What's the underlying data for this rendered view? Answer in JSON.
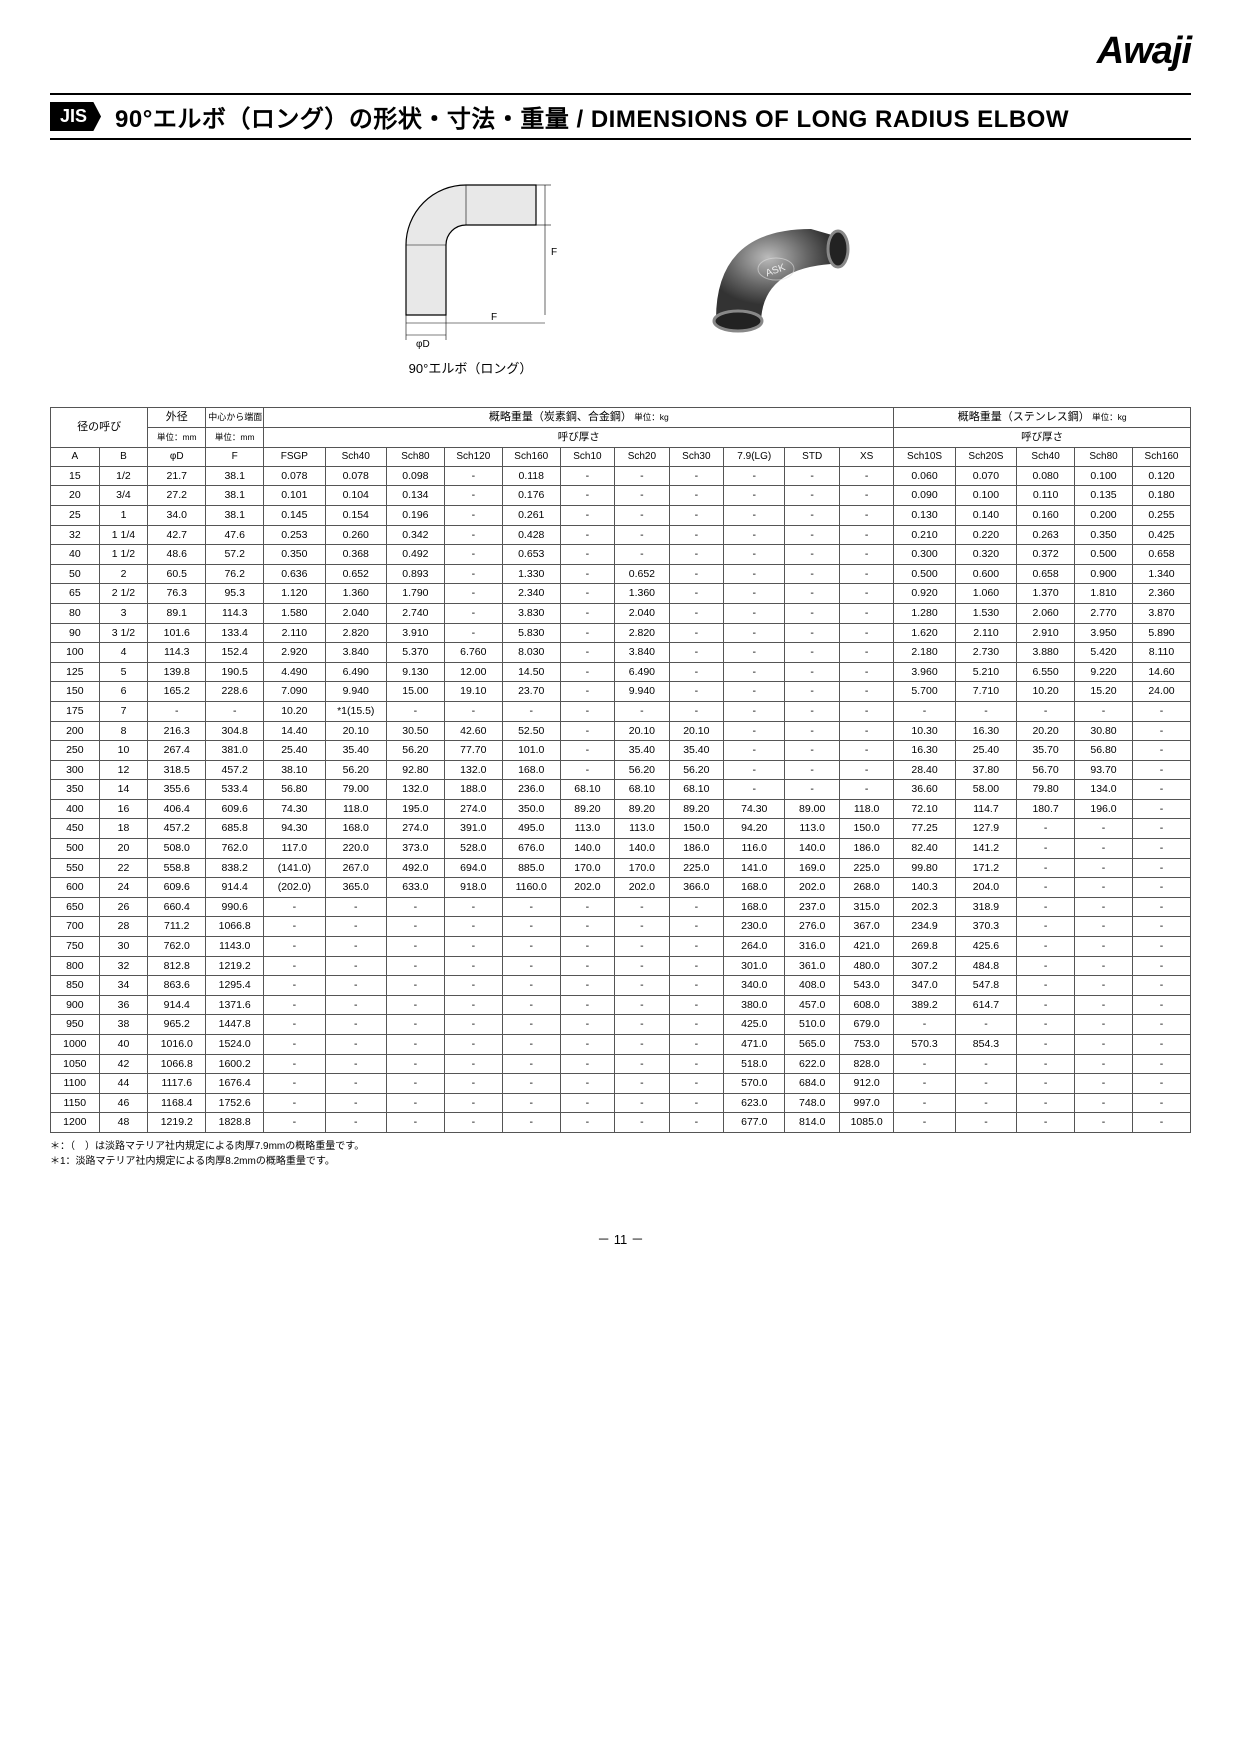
{
  "logo": "Awaji",
  "jis_tag": "JIS",
  "title": "90°エルボ（ロング）の形状・寸法・重量  /  DIMENSIONS OF LONG RADIUS ELBOW",
  "figure_caption": "90°エルボ（ロング）",
  "table": {
    "header": {
      "nominal": "径の呼び",
      "od": "外径",
      "od_unit": "単位：mm",
      "distance": "中心から端面までの距離",
      "distance_unit": "単位：mm",
      "carbon_title": "概略重量（炭素鋼、合金鋼）",
      "carbon_unit": " 単位：kg",
      "stainless_title": "概略重量（ステンレス鋼）",
      "stainless_unit": " 単位：kg",
      "thickness": "呼び厚さ",
      "cols": [
        "A",
        "B",
        "φD",
        "F",
        "FSGP",
        "Sch40",
        "Sch80",
        "Sch120",
        "Sch160",
        "Sch10",
        "Sch20",
        "Sch30",
        "7.9(LG)",
        "STD",
        "XS",
        "Sch10S",
        "Sch20S",
        "Sch40",
        "Sch80",
        "Sch160"
      ]
    },
    "rows": [
      [
        "15",
        "1/2",
        "21.7",
        "38.1",
        "0.078",
        "0.078",
        "0.098",
        "-",
        "0.118",
        "-",
        "-",
        "-",
        "-",
        "-",
        "-",
        "0.060",
        "0.070",
        "0.080",
        "0.100",
        "0.120"
      ],
      [
        "20",
        "3/4",
        "27.2",
        "38.1",
        "0.101",
        "0.104",
        "0.134",
        "-",
        "0.176",
        "-",
        "-",
        "-",
        "-",
        "-",
        "-",
        "0.090",
        "0.100",
        "0.110",
        "0.135",
        "0.180"
      ],
      [
        "25",
        "1",
        "34.0",
        "38.1",
        "0.145",
        "0.154",
        "0.196",
        "-",
        "0.261",
        "-",
        "-",
        "-",
        "-",
        "-",
        "-",
        "0.130",
        "0.140",
        "0.160",
        "0.200",
        "0.255"
      ],
      [
        "32",
        "1 1/4",
        "42.7",
        "47.6",
        "0.253",
        "0.260",
        "0.342",
        "-",
        "0.428",
        "-",
        "-",
        "-",
        "-",
        "-",
        "-",
        "0.210",
        "0.220",
        "0.263",
        "0.350",
        "0.425"
      ],
      [
        "40",
        "1 1/2",
        "48.6",
        "57.2",
        "0.350",
        "0.368",
        "0.492",
        "-",
        "0.653",
        "-",
        "-",
        "-",
        "-",
        "-",
        "-",
        "0.300",
        "0.320",
        "0.372",
        "0.500",
        "0.658"
      ],
      [
        "50",
        "2",
        "60.5",
        "76.2",
        "0.636",
        "0.652",
        "0.893",
        "-",
        "1.330",
        "-",
        "0.652",
        "-",
        "-",
        "-",
        "-",
        "0.500",
        "0.600",
        "0.658",
        "0.900",
        "1.340"
      ],
      [
        "65",
        "2 1/2",
        "76.3",
        "95.3",
        "1.120",
        "1.360",
        "1.790",
        "-",
        "2.340",
        "-",
        "1.360",
        "-",
        "-",
        "-",
        "-",
        "0.920",
        "1.060",
        "1.370",
        "1.810",
        "2.360"
      ],
      [
        "80",
        "3",
        "89.1",
        "114.3",
        "1.580",
        "2.040",
        "2.740",
        "-",
        "3.830",
        "-",
        "2.040",
        "-",
        "-",
        "-",
        "-",
        "1.280",
        "1.530",
        "2.060",
        "2.770",
        "3.870"
      ],
      [
        "90",
        "3 1/2",
        "101.6",
        "133.4",
        "2.110",
        "2.820",
        "3.910",
        "-",
        "5.830",
        "-",
        "2.820",
        "-",
        "-",
        "-",
        "-",
        "1.620",
        "2.110",
        "2.910",
        "3.950",
        "5.890"
      ],
      [
        "100",
        "4",
        "114.3",
        "152.4",
        "2.920",
        "3.840",
        "5.370",
        "6.760",
        "8.030",
        "-",
        "3.840",
        "-",
        "-",
        "-",
        "-",
        "2.180",
        "2.730",
        "3.880",
        "5.420",
        "8.110"
      ],
      [
        "125",
        "5",
        "139.8",
        "190.5",
        "4.490",
        "6.490",
        "9.130",
        "12.00",
        "14.50",
        "-",
        "6.490",
        "-",
        "-",
        "-",
        "-",
        "3.960",
        "5.210",
        "6.550",
        "9.220",
        "14.60"
      ],
      [
        "150",
        "6",
        "165.2",
        "228.6",
        "7.090",
        "9.940",
        "15.00",
        "19.10",
        "23.70",
        "-",
        "9.940",
        "-",
        "-",
        "-",
        "-",
        "5.700",
        "7.710",
        "10.20",
        "15.20",
        "24.00"
      ],
      [
        "175",
        "7",
        "-",
        "-",
        "10.20",
        "*1(15.5)",
        "-",
        "-",
        "-",
        "-",
        "-",
        "-",
        "-",
        "-",
        "-",
        "-",
        "-",
        "-",
        "-",
        "-"
      ],
      [
        "200",
        "8",
        "216.3",
        "304.8",
        "14.40",
        "20.10",
        "30.50",
        "42.60",
        "52.50",
        "-",
        "20.10",
        "20.10",
        "-",
        "-",
        "-",
        "10.30",
        "16.30",
        "20.20",
        "30.80",
        "-"
      ],
      [
        "250",
        "10",
        "267.4",
        "381.0",
        "25.40",
        "35.40",
        "56.20",
        "77.70",
        "101.0",
        "-",
        "35.40",
        "35.40",
        "-",
        "-",
        "-",
        "16.30",
        "25.40",
        "35.70",
        "56.80",
        "-"
      ],
      [
        "300",
        "12",
        "318.5",
        "457.2",
        "38.10",
        "56.20",
        "92.80",
        "132.0",
        "168.0",
        "-",
        "56.20",
        "56.20",
        "-",
        "-",
        "-",
        "28.40",
        "37.80",
        "56.70",
        "93.70",
        "-"
      ],
      [
        "350",
        "14",
        "355.6",
        "533.4",
        "56.80",
        "79.00",
        "132.0",
        "188.0",
        "236.0",
        "68.10",
        "68.10",
        "68.10",
        "-",
        "-",
        "-",
        "36.60",
        "58.00",
        "79.80",
        "134.0",
        "-"
      ],
      [
        "400",
        "16",
        "406.4",
        "609.6",
        "74.30",
        "118.0",
        "195.0",
        "274.0",
        "350.0",
        "89.20",
        "89.20",
        "89.20",
        "74.30",
        "89.00",
        "118.0",
        "72.10",
        "114.7",
        "180.7",
        "196.0",
        "-"
      ],
      [
        "450",
        "18",
        "457.2",
        "685.8",
        "94.30",
        "168.0",
        "274.0",
        "391.0",
        "495.0",
        "113.0",
        "113.0",
        "150.0",
        "94.20",
        "113.0",
        "150.0",
        "77.25",
        "127.9",
        "-",
        "-",
        "-"
      ],
      [
        "500",
        "20",
        "508.0",
        "762.0",
        "117.0",
        "220.0",
        "373.0",
        "528.0",
        "676.0",
        "140.0",
        "140.0",
        "186.0",
        "116.0",
        "140.0",
        "186.0",
        "82.40",
        "141.2",
        "-",
        "-",
        "-"
      ],
      [
        "550",
        "22",
        "558.8",
        "838.2",
        "(141.0)",
        "267.0",
        "492.0",
        "694.0",
        "885.0",
        "170.0",
        "170.0",
        "225.0",
        "141.0",
        "169.0",
        "225.0",
        "99.80",
        "171.2",
        "-",
        "-",
        "-"
      ],
      [
        "600",
        "24",
        "609.6",
        "914.4",
        "(202.0)",
        "365.0",
        "633.0",
        "918.0",
        "1160.0",
        "202.0",
        "202.0",
        "366.0",
        "168.0",
        "202.0",
        "268.0",
        "140.3",
        "204.0",
        "-",
        "-",
        "-"
      ],
      [
        "650",
        "26",
        "660.4",
        "990.6",
        "-",
        "-",
        "-",
        "-",
        "-",
        "-",
        "-",
        "-",
        "168.0",
        "237.0",
        "315.0",
        "202.3",
        "318.9",
        "-",
        "-",
        "-"
      ],
      [
        "700",
        "28",
        "711.2",
        "1066.8",
        "-",
        "-",
        "-",
        "-",
        "-",
        "-",
        "-",
        "-",
        "230.0",
        "276.0",
        "367.0",
        "234.9",
        "370.3",
        "-",
        "-",
        "-"
      ],
      [
        "750",
        "30",
        "762.0",
        "1143.0",
        "-",
        "-",
        "-",
        "-",
        "-",
        "-",
        "-",
        "-",
        "264.0",
        "316.0",
        "421.0",
        "269.8",
        "425.6",
        "-",
        "-",
        "-"
      ],
      [
        "800",
        "32",
        "812.8",
        "1219.2",
        "-",
        "-",
        "-",
        "-",
        "-",
        "-",
        "-",
        "-",
        "301.0",
        "361.0",
        "480.0",
        "307.2",
        "484.8",
        "-",
        "-",
        "-"
      ],
      [
        "850",
        "34",
        "863.6",
        "1295.4",
        "-",
        "-",
        "-",
        "-",
        "-",
        "-",
        "-",
        "-",
        "340.0",
        "408.0",
        "543.0",
        "347.0",
        "547.8",
        "-",
        "-",
        "-"
      ],
      [
        "900",
        "36",
        "914.4",
        "1371.6",
        "-",
        "-",
        "-",
        "-",
        "-",
        "-",
        "-",
        "-",
        "380.0",
        "457.0",
        "608.0",
        "389.2",
        "614.7",
        "-",
        "-",
        "-"
      ],
      [
        "950",
        "38",
        "965.2",
        "1447.8",
        "-",
        "-",
        "-",
        "-",
        "-",
        "-",
        "-",
        "-",
        "425.0",
        "510.0",
        "679.0",
        "-",
        "-",
        "-",
        "-",
        "-"
      ],
      [
        "1000",
        "40",
        "1016.0",
        "1524.0",
        "-",
        "-",
        "-",
        "-",
        "-",
        "-",
        "-",
        "-",
        "471.0",
        "565.0",
        "753.0",
        "570.3",
        "854.3",
        "-",
        "-",
        "-"
      ],
      [
        "1050",
        "42",
        "1066.8",
        "1600.2",
        "-",
        "-",
        "-",
        "-",
        "-",
        "-",
        "-",
        "-",
        "518.0",
        "622.0",
        "828.0",
        "-",
        "-",
        "-",
        "-",
        "-"
      ],
      [
        "1100",
        "44",
        "1117.6",
        "1676.4",
        "-",
        "-",
        "-",
        "-",
        "-",
        "-",
        "-",
        "-",
        "570.0",
        "684.0",
        "912.0",
        "-",
        "-",
        "-",
        "-",
        "-"
      ],
      [
        "1150",
        "46",
        "1168.4",
        "1752.6",
        "-",
        "-",
        "-",
        "-",
        "-",
        "-",
        "-",
        "-",
        "623.0",
        "748.0",
        "997.0",
        "-",
        "-",
        "-",
        "-",
        "-"
      ],
      [
        "1200",
        "48",
        "1219.2",
        "1828.8",
        "-",
        "-",
        "-",
        "-",
        "-",
        "-",
        "-",
        "-",
        "677.0",
        "814.0",
        "1085.0",
        "-",
        "-",
        "-",
        "-",
        "-"
      ]
    ]
  },
  "footnote1": "＊：（　）は淡路マテリア社内規定による肉厚7.9mmの概略重量です。",
  "footnote2": "＊1：淡路マテリア社内規定による肉厚8.2mmの概略重量です。",
  "page_number": "－ 11 －",
  "colors": {
    "border": "#555555",
    "text": "#000000",
    "background": "#ffffff"
  }
}
